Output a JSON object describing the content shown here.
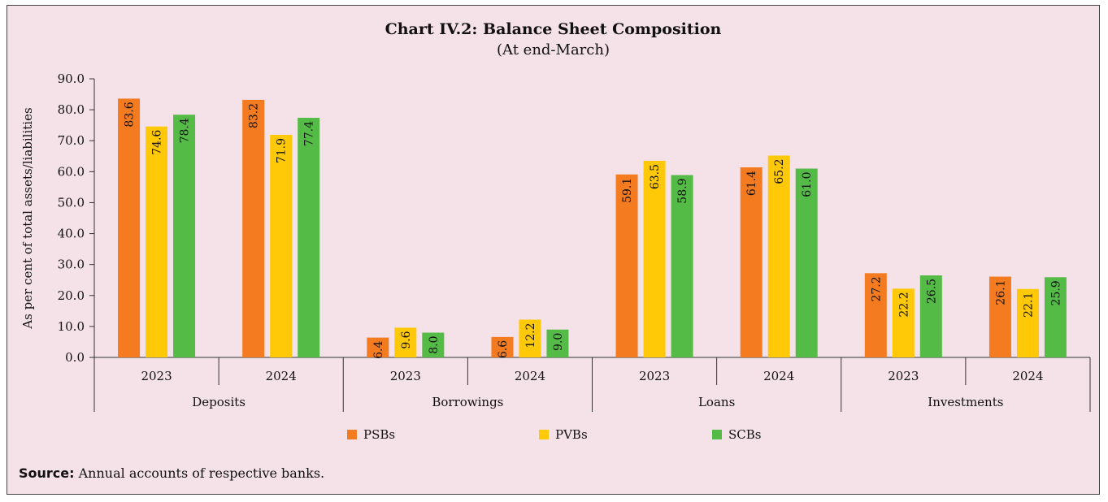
{
  "title": "Chart IV.2: Balance Sheet Composition",
  "subtitle": "(At end-March)",
  "source": {
    "label": "Source:",
    "text": "Annual accounts of respective banks."
  },
  "colors": {
    "PSBs": "#f47b20",
    "PVBs": "#ffc907",
    "SCBs": "#55bb47"
  },
  "chart_data": {
    "type": "bar",
    "ylabel": "As per cent of total assets/liabilities",
    "ylim": [
      0,
      90
    ],
    "yticks": [
      "0.0",
      "10.0",
      "20.0",
      "30.0",
      "40.0",
      "50.0",
      "60.0",
      "70.0",
      "80.0",
      "90.0"
    ],
    "groups": [
      "Deposits",
      "Borrowings",
      "Loans",
      "Investments"
    ],
    "categories": [
      "2023",
      "2024",
      "2023",
      "2024",
      "2023",
      "2024",
      "2023",
      "2024"
    ],
    "series": [
      {
        "name": "PSBs",
        "values": [
          83.6,
          83.2,
          6.4,
          6.6,
          59.1,
          61.4,
          27.2,
          26.1
        ],
        "labels": [
          "83.6",
          "83.2",
          "6.4",
          "6.6",
          "59.1",
          "61.4",
          "27.2",
          "26.1"
        ]
      },
      {
        "name": "PVBs",
        "values": [
          74.6,
          71.9,
          9.6,
          12.2,
          63.5,
          65.2,
          22.2,
          22.1
        ],
        "labels": [
          "74.6",
          "71.9",
          "9.6",
          "12.2",
          "63.5",
          "65.2",
          "22.2",
          "22.1"
        ]
      },
      {
        "name": "SCBs",
        "values": [
          78.4,
          77.4,
          8.0,
          9.0,
          58.9,
          61.0,
          26.5,
          25.9
        ],
        "labels": [
          "78.4",
          "77.4",
          "8.0",
          "9.0",
          "58.9",
          "61.0",
          "26.5",
          "25.9"
        ]
      }
    ],
    "legend_position": "bottom"
  }
}
